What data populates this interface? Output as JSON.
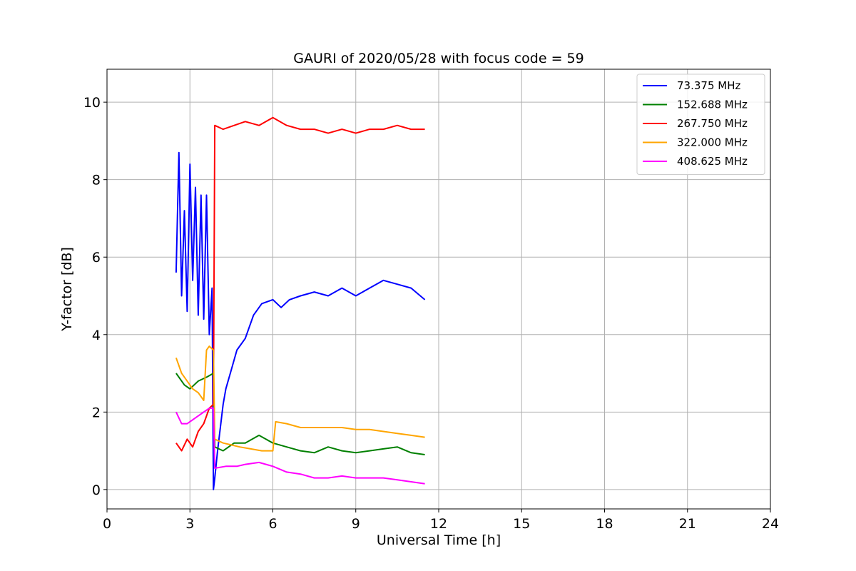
{
  "chart_data": {
    "type": "line",
    "title": "GAURI of 2020/05/28 with focus code = 59",
    "xlabel": "Universal Time [h]",
    "ylabel": "Y-factor [dB]",
    "xlim": [
      0,
      24
    ],
    "ylim": [
      -0.5,
      10.85
    ],
    "xticks": [
      0,
      3,
      6,
      9,
      12,
      15,
      18,
      21,
      24
    ],
    "yticks": [
      0,
      2,
      4,
      6,
      8,
      10
    ],
    "grid": true,
    "legend_position": "top-right",
    "series": [
      {
        "name": " 73.375 MHz",
        "color": "#0000ff",
        "x": [
          2.5,
          2.6,
          2.7,
          2.8,
          2.9,
          3.0,
          3.1,
          3.2,
          3.3,
          3.4,
          3.5,
          3.6,
          3.7,
          3.8,
          3.85,
          3.9,
          4.0,
          4.1,
          4.2,
          4.3,
          4.5,
          4.7,
          5.0,
          5.3,
          5.6,
          6.0,
          6.3,
          6.6,
          7.0,
          7.5,
          8.0,
          8.5,
          9.0,
          9.5,
          10.0,
          10.5,
          11.0,
          11.5
        ],
        "y": [
          5.6,
          8.7,
          5.0,
          7.2,
          4.6,
          8.4,
          5.4,
          7.8,
          4.5,
          7.6,
          4.4,
          7.6,
          4.0,
          5.2,
          0.0,
          0.3,
          1.0,
          1.6,
          2.2,
          2.6,
          3.1,
          3.6,
          3.9,
          4.5,
          4.8,
          4.9,
          4.7,
          4.9,
          5.0,
          5.1,
          5.0,
          5.2,
          5.0,
          5.2,
          5.4,
          5.3,
          5.2,
          4.9
        ]
      },
      {
        "name": "152.688 MHz",
        "color": "#008000",
        "x": [
          2.5,
          2.8,
          3.0,
          3.3,
          3.6,
          3.85,
          3.9,
          4.2,
          4.6,
          5.0,
          5.5,
          6.0,
          6.5,
          7.0,
          7.5,
          8.0,
          8.5,
          9.0,
          9.5,
          10.0,
          10.5,
          11.0,
          11.5
        ],
        "y": [
          3.0,
          2.7,
          2.6,
          2.8,
          2.9,
          3.0,
          1.1,
          1.0,
          1.2,
          1.2,
          1.4,
          1.2,
          1.1,
          1.0,
          0.95,
          1.1,
          1.0,
          0.95,
          1.0,
          1.05,
          1.1,
          0.95,
          0.9
        ]
      },
      {
        "name": "267.750 MHz",
        "color": "#ff0000",
        "x": [
          2.5,
          2.7,
          2.9,
          3.1,
          3.3,
          3.5,
          3.7,
          3.85,
          3.9,
          4.2,
          4.6,
          5.0,
          5.5,
          6.0,
          6.5,
          7.0,
          7.5,
          8.0,
          8.5,
          9.0,
          9.5,
          10.0,
          10.5,
          11.0,
          11.5
        ],
        "y": [
          1.2,
          1.0,
          1.3,
          1.1,
          1.5,
          1.7,
          2.1,
          2.2,
          9.4,
          9.3,
          9.4,
          9.5,
          9.4,
          9.6,
          9.4,
          9.3,
          9.3,
          9.2,
          9.3,
          9.2,
          9.3,
          9.3,
          9.4,
          9.3,
          9.3
        ]
      },
      {
        "name": "322.000 MHz",
        "color": "#ffa500",
        "x": [
          2.5,
          2.7,
          2.9,
          3.1,
          3.3,
          3.5,
          3.6,
          3.7,
          3.85,
          3.9,
          4.2,
          4.5,
          4.8,
          5.2,
          5.6,
          6.0,
          6.1,
          6.5,
          7.0,
          7.5,
          8.0,
          8.5,
          9.0,
          9.5,
          10.0,
          10.5,
          11.0,
          11.5
        ],
        "y": [
          3.4,
          3.0,
          2.8,
          2.6,
          2.5,
          2.3,
          3.6,
          3.7,
          3.6,
          1.3,
          1.2,
          1.15,
          1.1,
          1.05,
          1.0,
          1.0,
          1.75,
          1.7,
          1.6,
          1.6,
          1.6,
          1.6,
          1.55,
          1.55,
          1.5,
          1.45,
          1.4,
          1.35
        ]
      },
      {
        "name": "408.625 MHz",
        "color": "#ff00ff",
        "x": [
          2.5,
          2.7,
          2.9,
          3.1,
          3.3,
          3.5,
          3.7,
          3.85,
          3.9,
          4.3,
          4.7,
          5.0,
          5.5,
          6.0,
          6.5,
          7.0,
          7.5,
          8.0,
          8.5,
          9.0,
          9.5,
          10.0,
          10.5,
          11.0,
          11.5
        ],
        "y": [
          2.0,
          1.7,
          1.7,
          1.8,
          1.9,
          2.0,
          2.1,
          2.1,
          0.55,
          0.6,
          0.6,
          0.65,
          0.7,
          0.6,
          0.45,
          0.4,
          0.3,
          0.3,
          0.35,
          0.3,
          0.3,
          0.3,
          0.25,
          0.2,
          0.15
        ]
      }
    ]
  }
}
